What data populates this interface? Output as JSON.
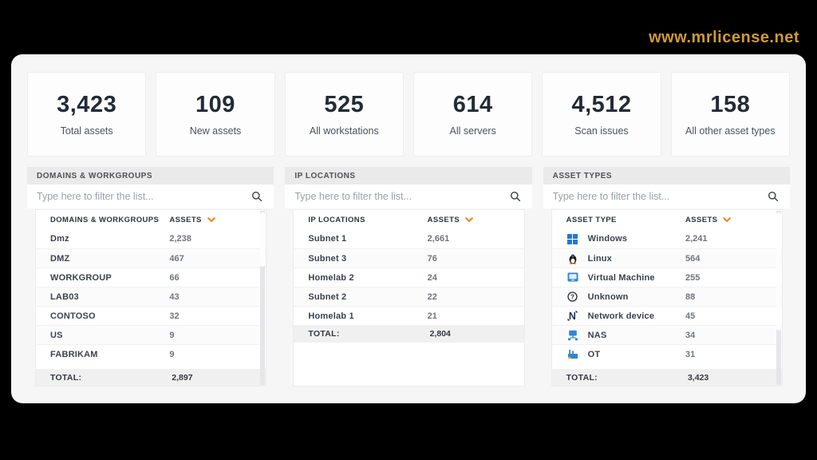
{
  "watermark": "www.mrlicense.net",
  "stats": [
    {
      "value": "3,423",
      "label": "Total assets"
    },
    {
      "value": "109",
      "label": "New assets"
    },
    {
      "value": "525",
      "label": "All workstations"
    },
    {
      "value": "614",
      "label": "All servers"
    },
    {
      "value": "4,512",
      "label": "Scan issues"
    },
    {
      "value": "158",
      "label": "All other asset types"
    }
  ],
  "filter_placeholder": "Type here to filter the list...",
  "panels": [
    {
      "title": "DOMAINS & WORKGROUPS",
      "name_header": "DOMAINS & WORKGROUPS",
      "assets_header": "ASSETS",
      "rows": [
        {
          "label": "Dmz",
          "value": "2,238"
        },
        {
          "label": "DMZ",
          "value": "467"
        },
        {
          "label": "WORKGROUP",
          "value": "66"
        },
        {
          "label": "LAB03",
          "value": "43"
        },
        {
          "label": "CONTOSO",
          "value": "32"
        },
        {
          "label": "US",
          "value": "9"
        },
        {
          "label": "FABRIKAM",
          "value": "9"
        }
      ],
      "total_label": "TOTAL:",
      "total_value": "2,897",
      "scrollable": true
    },
    {
      "title": "IP LOCATIONS",
      "name_header": "IP LOCATIONS",
      "assets_header": "ASSETS",
      "rows": [
        {
          "label": "Subnet 1",
          "value": "2,661"
        },
        {
          "label": "Subnet 3",
          "value": "76"
        },
        {
          "label": "Homelab 2",
          "value": "24"
        },
        {
          "label": "Subnet 2",
          "value": "22"
        },
        {
          "label": "Homelab 1",
          "value": "21"
        }
      ],
      "total_label": "TOTAL:",
      "total_value": "2,804",
      "scrollable": false
    },
    {
      "title": "ASSET TYPES",
      "name_header": "ASSET TYPE",
      "assets_header": "ASSETS",
      "rows": [
        {
          "icon": "windows-icon",
          "label": "Windows",
          "value": "2,241"
        },
        {
          "icon": "linux-icon",
          "label": "Linux",
          "value": "564"
        },
        {
          "icon": "virtual-machine-icon",
          "label": "Virtual Machine",
          "value": "255"
        },
        {
          "icon": "unknown-icon",
          "label": "Unknown",
          "value": "88"
        },
        {
          "icon": "network-device-icon",
          "label": "Network device",
          "value": "45"
        },
        {
          "icon": "nas-icon",
          "label": "NAS",
          "value": "34"
        },
        {
          "icon": "ot-icon",
          "label": "OT",
          "value": "31"
        }
      ],
      "total_label": "TOTAL:",
      "total_value": "3,423",
      "scrollable": true
    }
  ],
  "colors": {
    "accent_orange": "#f08a2a",
    "watermark_gold": "#d19c2f",
    "icon_blue": "#2e86d6"
  }
}
